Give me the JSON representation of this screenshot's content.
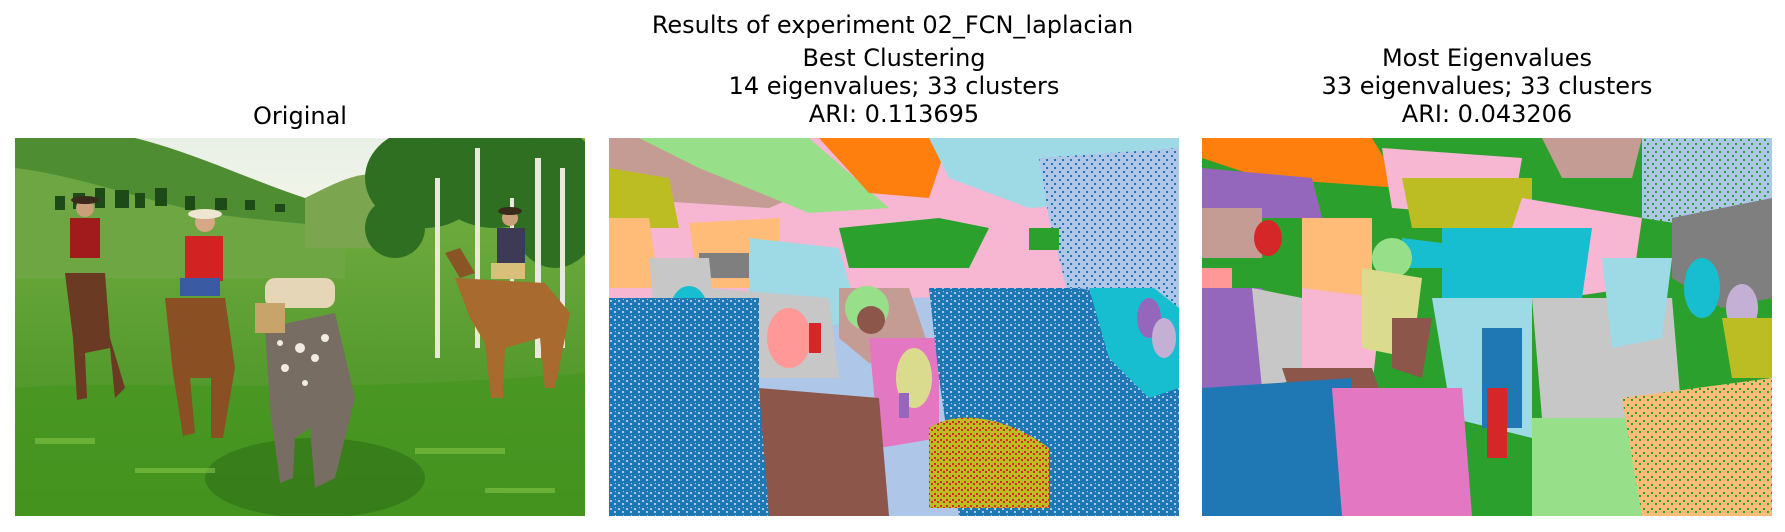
{
  "figure": {
    "suptitle": "Results of experiment 02_FCN_laplacian",
    "panels": [
      {
        "id": "original",
        "title_lines": [
          "Original"
        ]
      },
      {
        "id": "best",
        "title_lines": [
          "Best Clustering",
          "14 eigenvalues; 33 clusters",
          "ARI: 0.113695"
        ]
      },
      {
        "id": "most",
        "title_lines": [
          "Most Eigenvalues",
          "33 eigenvalues; 33 clusters",
          "ARI: 0.043206"
        ]
      }
    ]
  },
  "colors": {
    "tab_blue": "#1f77b4",
    "tab_orange": "#ff7f0e",
    "tab_green": "#2ca02c",
    "tab_red": "#d62728",
    "tab_purple": "#9467bd",
    "tab_brown": "#8c564b",
    "tab_pink": "#e377c2",
    "tab_gray": "#7f7f7f",
    "tab_olive": "#bcbd22",
    "tab_cyan": "#17becf",
    "light_blue": "#aec7e8",
    "light_orange": "#ffbb78",
    "light_green": "#98df8a",
    "light_red": "#ff9896",
    "light_purple": "#c5b0d5",
    "light_brown": "#c49c94",
    "light_pink": "#f7b6d2",
    "light_gray": "#c7c7c7",
    "light_olive": "#dbdb8d",
    "light_cyan": "#9edae5"
  }
}
